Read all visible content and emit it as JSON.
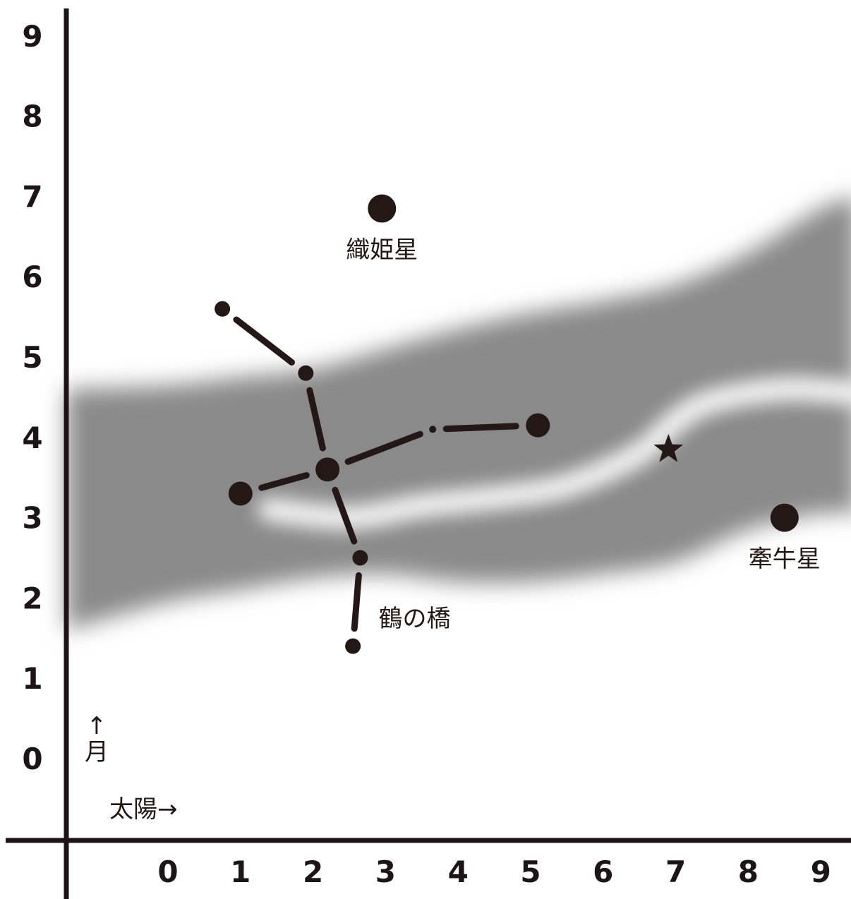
{
  "chart_data": {
    "type": "scatter",
    "title": "",
    "xlabel": "",
    "ylabel": "",
    "x_ticks": [
      "0",
      "1",
      "2",
      "3",
      "4",
      "5",
      "6",
      "7",
      "8",
      "9"
    ],
    "y_ticks": [
      "0",
      "1",
      "2",
      "3",
      "4",
      "5",
      "6",
      "7",
      "8",
      "9"
    ],
    "xlim": [
      -1.4,
      9.5
    ],
    "ylim": [
      -1.0,
      9.4
    ],
    "grid": false,
    "milky_way": {
      "upper": [
        [
          -1.4,
          4.6
        ],
        [
          0,
          4.65
        ],
        [
          1,
          4.75
        ],
        [
          2,
          4.85
        ],
        [
          3,
          5.1
        ],
        [
          4,
          5.35
        ],
        [
          5,
          5.55
        ],
        [
          6,
          5.7
        ],
        [
          7,
          5.9
        ],
        [
          8,
          6.3
        ],
        [
          9,
          6.85
        ],
        [
          9.5,
          7.0
        ]
      ],
      "lower": [
        [
          -1.4,
          1.6
        ],
        [
          0,
          1.95
        ],
        [
          1,
          2.1
        ],
        [
          2,
          2.25
        ],
        [
          3,
          2.3
        ],
        [
          4,
          2.2
        ],
        [
          5,
          2.2
        ],
        [
          6,
          2.3
        ],
        [
          7,
          2.45
        ],
        [
          8,
          2.85
        ],
        [
          9,
          3.05
        ],
        [
          9.5,
          3.05
        ]
      ],
      "rift": [
        [
          1.4,
          3.1
        ],
        [
          2.5,
          3.0
        ],
        [
          3.5,
          3.15
        ],
        [
          4.5,
          3.25
        ],
        [
          5.5,
          3.4
        ],
        [
          6.5,
          3.8
        ],
        [
          7,
          4.2
        ],
        [
          7.5,
          4.45
        ],
        [
          8.5,
          4.6
        ],
        [
          9.5,
          4.55
        ]
      ]
    },
    "stars": [
      {
        "name": "vega",
        "label": "織姫星",
        "x": 2.95,
        "y": 6.85,
        "size": "large"
      },
      {
        "name": "altair",
        "label": "牽牛星",
        "x": 8.5,
        "y": 3.0,
        "size": "large"
      },
      {
        "name": "marker",
        "label": "",
        "x": 6.9,
        "y": 3.85,
        "size": "star-marker"
      }
    ],
    "constellation": {
      "label": "鶴の橋",
      "label_pos": [
        3.4,
        1.75
      ],
      "nodes": [
        {
          "x": 0.75,
          "y": 5.6,
          "size": "small"
        },
        {
          "x": 1.9,
          "y": 4.8,
          "size": "small"
        },
        {
          "x": 2.2,
          "y": 3.6,
          "size": "large"
        },
        {
          "x": 1.0,
          "y": 3.3,
          "size": "large"
        },
        {
          "x": 5.1,
          "y": 4.15,
          "size": "large"
        },
        {
          "x": 3.65,
          "y": 4.1,
          "size": "tiny"
        },
        {
          "x": 2.65,
          "y": 2.5,
          "size": "small"
        },
        {
          "x": 2.55,
          "y": 1.4,
          "size": "small"
        }
      ],
      "edges": [
        [
          0,
          1
        ],
        [
          1,
          2
        ],
        [
          3,
          2
        ],
        [
          2,
          5
        ],
        [
          5,
          4
        ],
        [
          2,
          6
        ],
        [
          6,
          7
        ]
      ]
    },
    "annotations": {
      "moon_arrow": "↑",
      "moon": "月",
      "sun": "太陽→"
    }
  }
}
